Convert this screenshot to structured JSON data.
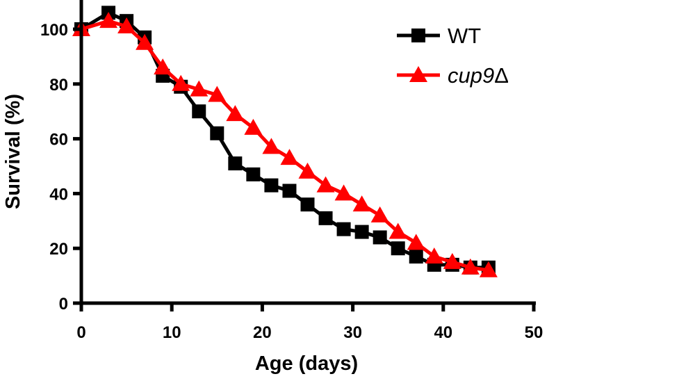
{
  "chart_data": {
    "type": "line",
    "title": "",
    "xlabel": "Age (days)",
    "ylabel": "Survival (%)",
    "xlim": [
      0,
      50
    ],
    "ylim": [
      0,
      110
    ],
    "xticks": [
      0,
      10,
      20,
      30,
      40,
      50
    ],
    "yticks": [
      0,
      20,
      40,
      60,
      80,
      100
    ],
    "grid": false,
    "legend_position": "top-right",
    "series": [
      {
        "name": "WT",
        "marker": "square",
        "color": "#000000",
        "x": [
          0,
          3,
          5,
          7,
          9,
          11,
          13,
          15,
          17,
          19,
          21,
          23,
          25,
          27,
          29,
          31,
          33,
          35,
          37,
          39,
          41,
          43,
          45
        ],
        "y": [
          100,
          106,
          103,
          97,
          83,
          79,
          70,
          62,
          51,
          47,
          43,
          41,
          36,
          31,
          27,
          26,
          24,
          20,
          17,
          14,
          14,
          13,
          13
        ]
      },
      {
        "name": "cup9Δ",
        "name_parts": {
          "italic": "cup9",
          "plain": "Δ"
        },
        "marker": "triangle",
        "color": "#ff0000",
        "x": [
          0,
          3,
          5,
          7,
          9,
          11,
          13,
          15,
          17,
          19,
          21,
          23,
          25,
          27,
          29,
          31,
          33,
          35,
          37,
          39,
          41,
          43,
          45
        ],
        "y": [
          100,
          103,
          101,
          95,
          86,
          80,
          78,
          76,
          69,
          64,
          57,
          53,
          48,
          43,
          40,
          36,
          32,
          26,
          22,
          17,
          15,
          13,
          12
        ]
      }
    ]
  }
}
